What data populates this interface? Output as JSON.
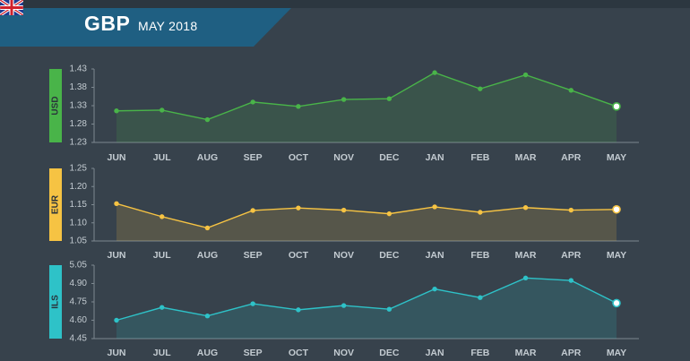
{
  "header": {
    "currency": "GBP",
    "period": "MAY 2018",
    "flag_icon": "uk-flag-icon",
    "band_color": "#1f5f82"
  },
  "chart_data": [
    {
      "type": "area",
      "series_label": "USD",
      "color": "#49b449",
      "categories": [
        "JUN",
        "JUL",
        "AUG",
        "SEP",
        "OCT",
        "NOV",
        "DEC",
        "JAN",
        "FEB",
        "MAR",
        "APR",
        "MAY"
      ],
      "values": [
        1.316,
        1.318,
        1.292,
        1.34,
        1.328,
        1.347,
        1.349,
        1.42,
        1.376,
        1.414,
        1.372,
        1.328
      ],
      "ylim": [
        1.23,
        1.43
      ],
      "yticks": [
        "1.43",
        "1.38",
        "1.33",
        "1.28",
        "1.23"
      ],
      "grid": false
    },
    {
      "type": "area",
      "series_label": "EUR",
      "color": "#f6c343",
      "categories": [
        "JUN",
        "JUL",
        "AUG",
        "SEP",
        "OCT",
        "NOV",
        "DEC",
        "JAN",
        "FEB",
        "MAR",
        "APR",
        "MAY"
      ],
      "values": [
        1.153,
        1.117,
        1.086,
        1.134,
        1.141,
        1.135,
        1.125,
        1.144,
        1.129,
        1.142,
        1.135,
        1.137
      ],
      "ylim": [
        1.05,
        1.25
      ],
      "yticks": [
        "1.25",
        "1.20",
        "1.15",
        "1.10",
        "1.05"
      ],
      "grid": false
    },
    {
      "type": "area",
      "series_label": "ILS",
      "color": "#2ec2c8",
      "categories": [
        "JUN",
        "JUL",
        "AUG",
        "SEP",
        "OCT",
        "NOV",
        "DEC",
        "JAN",
        "FEB",
        "MAR",
        "APR",
        "MAY"
      ],
      "values": [
        4.6,
        4.705,
        4.635,
        4.735,
        4.685,
        4.72,
        4.69,
        4.855,
        4.785,
        4.945,
        4.925,
        4.74
      ],
      "ylim": [
        4.45,
        5.05
      ],
      "yticks": [
        "5.05",
        "4.90",
        "4.75",
        "4.60",
        "4.45"
      ],
      "grid": false
    }
  ]
}
